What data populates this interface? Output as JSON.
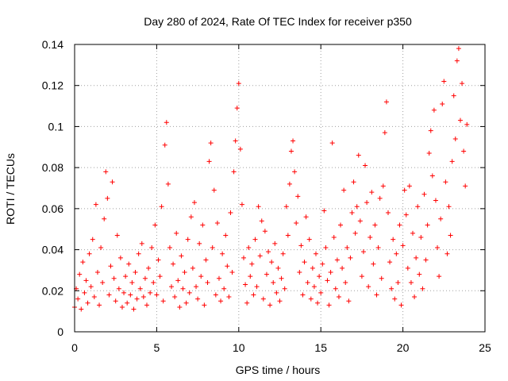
{
  "chart_data": {
    "type": "scatter",
    "title": "Day 280 of 2024, Rate Of TEC Index for receiver p350",
    "xlabel": "GPS time / hours",
    "ylabel": "ROTI / TECUs",
    "xlim": [
      0,
      25
    ],
    "ylim": [
      0,
      0.14
    ],
    "x_ticks": [
      0,
      5,
      10,
      15,
      20,
      25
    ],
    "y_ticks": [
      0,
      0.02,
      0.04,
      0.06,
      0.08,
      0.1,
      0.12,
      0.14
    ],
    "x_tick_labels": [
      "0",
      "5",
      "10",
      "15",
      "20",
      "25"
    ],
    "y_tick_labels": [
      "0",
      "0.02",
      "0.04",
      "0.06",
      "0.08",
      "0.1",
      "0.12",
      "0.14"
    ],
    "grid": true,
    "marker": "+",
    "color": "#ff0000",
    "series": [
      {
        "name": "ROTI",
        "points": [
          [
            0.0,
            0.012
          ],
          [
            0.1,
            0.021
          ],
          [
            0.2,
            0.016
          ],
          [
            0.3,
            0.028
          ],
          [
            0.4,
            0.011
          ],
          [
            0.5,
            0.034
          ],
          [
            0.6,
            0.019
          ],
          [
            0.7,
            0.025
          ],
          [
            0.8,
            0.014
          ],
          [
            0.9,
            0.038
          ],
          [
            1.0,
            0.022
          ],
          [
            1.1,
            0.045
          ],
          [
            1.2,
            0.017
          ],
          [
            1.3,
            0.062
          ],
          [
            1.4,
            0.029
          ],
          [
            1.5,
            0.013
          ],
          [
            1.6,
            0.041
          ],
          [
            1.7,
            0.024
          ],
          [
            1.8,
            0.055
          ],
          [
            1.9,
            0.078
          ],
          [
            2.0,
            0.065
          ],
          [
            2.1,
            0.018
          ],
          [
            2.2,
            0.032
          ],
          [
            2.3,
            0.073
          ],
          [
            2.4,
            0.026
          ],
          [
            2.5,
            0.015
          ],
          [
            2.6,
            0.047
          ],
          [
            2.7,
            0.021
          ],
          [
            2.8,
            0.036
          ],
          [
            2.9,
            0.012
          ],
          [
            3.0,
            0.019
          ],
          [
            3.1,
            0.027
          ],
          [
            3.2,
            0.014
          ],
          [
            3.3,
            0.033
          ],
          [
            3.4,
            0.018
          ],
          [
            3.5,
            0.024
          ],
          [
            3.6,
            0.011
          ],
          [
            3.7,
            0.029
          ],
          [
            3.8,
            0.016
          ],
          [
            3.9,
            0.038
          ],
          [
            4.0,
            0.021
          ],
          [
            4.1,
            0.043
          ],
          [
            4.2,
            0.017
          ],
          [
            4.3,
            0.026
          ],
          [
            4.4,
            0.013
          ],
          [
            4.5,
            0.031
          ],
          [
            4.6,
            0.019
          ],
          [
            4.7,
            0.041
          ],
          [
            4.8,
            0.024
          ],
          [
            4.9,
            0.052
          ],
          [
            5.0,
            0.018
          ],
          [
            5.1,
            0.035
          ],
          [
            5.2,
            0.027
          ],
          [
            5.3,
            0.061
          ],
          [
            5.4,
            0.015
          ],
          [
            5.5,
            0.091
          ],
          [
            5.6,
            0.102
          ],
          [
            5.7,
            0.072
          ],
          [
            5.8,
            0.041
          ],
          [
            5.9,
            0.022
          ],
          [
            6.0,
            0.033
          ],
          [
            6.1,
            0.017
          ],
          [
            6.2,
            0.048
          ],
          [
            6.3,
            0.025
          ],
          [
            6.4,
            0.012
          ],
          [
            6.5,
            0.037
          ],
          [
            6.6,
            0.021
          ],
          [
            6.7,
            0.029
          ],
          [
            6.8,
            0.014
          ],
          [
            6.9,
            0.045
          ],
          [
            7.0,
            0.019
          ],
          [
            7.1,
            0.056
          ],
          [
            7.2,
            0.031
          ],
          [
            7.3,
            0.063
          ],
          [
            7.4,
            0.022
          ],
          [
            7.5,
            0.016
          ],
          [
            7.6,
            0.043
          ],
          [
            7.7,
            0.027
          ],
          [
            7.8,
            0.052
          ],
          [
            7.9,
            0.013
          ],
          [
            8.0,
            0.035
          ],
          [
            8.1,
            0.024
          ],
          [
            8.2,
            0.083
          ],
          [
            8.3,
            0.092
          ],
          [
            8.4,
            0.041
          ],
          [
            8.5,
            0.069
          ],
          [
            8.6,
            0.018
          ],
          [
            8.7,
            0.053
          ],
          [
            8.8,
            0.026
          ],
          [
            8.9,
            0.015
          ],
          [
            9.0,
            0.038
          ],
          [
            9.1,
            0.021
          ],
          [
            9.2,
            0.047
          ],
          [
            9.3,
            0.032
          ],
          [
            9.4,
            0.017
          ],
          [
            9.5,
            0.058
          ],
          [
            9.6,
            0.029
          ],
          [
            9.7,
            0.078
          ],
          [
            9.8,
            0.093
          ],
          [
            9.9,
            0.109
          ],
          [
            10.0,
            0.121
          ],
          [
            10.1,
            0.089
          ],
          [
            10.2,
            0.062
          ],
          [
            10.3,
            0.036
          ],
          [
            10.4,
            0.023
          ],
          [
            10.5,
            0.014
          ],
          [
            10.6,
            0.041
          ],
          [
            10.7,
            0.027
          ],
          [
            10.8,
            0.033
          ],
          [
            10.9,
            0.018
          ],
          [
            11.0,
            0.045
          ],
          [
            11.1,
            0.022
          ],
          [
            11.2,
            0.061
          ],
          [
            11.3,
            0.037
          ],
          [
            11.4,
            0.054
          ],
          [
            11.5,
            0.016
          ],
          [
            11.6,
            0.049
          ],
          [
            11.7,
            0.028
          ],
          [
            11.8,
            0.039
          ],
          [
            11.9,
            0.013
          ],
          [
            12.0,
            0.034
          ],
          [
            12.1,
            0.024
          ],
          [
            12.2,
            0.043
          ],
          [
            12.3,
            0.019
          ],
          [
            12.4,
            0.031
          ],
          [
            12.5,
            0.015
          ],
          [
            12.6,
            0.026
          ],
          [
            12.7,
            0.038
          ],
          [
            12.8,
            0.021
          ],
          [
            12.9,
            0.061
          ],
          [
            13.0,
            0.047
          ],
          [
            13.1,
            0.072
          ],
          [
            13.2,
            0.088
          ],
          [
            13.3,
            0.093
          ],
          [
            13.4,
            0.078
          ],
          [
            13.5,
            0.053
          ],
          [
            13.6,
            0.066
          ],
          [
            13.7,
            0.029
          ],
          [
            13.8,
            0.042
          ],
          [
            13.9,
            0.018
          ],
          [
            14.0,
            0.034
          ],
          [
            14.1,
            0.056
          ],
          [
            14.2,
            0.024
          ],
          [
            14.3,
            0.045
          ],
          [
            14.4,
            0.016
          ],
          [
            14.5,
            0.031
          ],
          [
            14.6,
            0.022
          ],
          [
            14.7,
            0.038
          ],
          [
            14.8,
            0.014
          ],
          [
            14.9,
            0.027
          ],
          [
            15.0,
            0.019
          ],
          [
            15.1,
            0.033
          ],
          [
            15.2,
            0.059
          ],
          [
            15.3,
            0.041
          ],
          [
            15.4,
            0.025
          ],
          [
            15.5,
            0.013
          ],
          [
            15.6,
            0.029
          ],
          [
            15.7,
            0.092
          ],
          [
            15.8,
            0.046
          ],
          [
            15.9,
            0.021
          ],
          [
            16.0,
            0.035
          ],
          [
            16.1,
            0.017
          ],
          [
            16.2,
            0.052
          ],
          [
            16.3,
            0.031
          ],
          [
            16.4,
            0.069
          ],
          [
            16.5,
            0.024
          ],
          [
            16.6,
            0.041
          ],
          [
            16.7,
            0.015
          ],
          [
            16.8,
            0.036
          ],
          [
            16.9,
            0.058
          ],
          [
            17.0,
            0.073
          ],
          [
            17.1,
            0.048
          ],
          [
            17.2,
            0.061
          ],
          [
            17.3,
            0.086
          ],
          [
            17.4,
            0.054
          ],
          [
            17.5,
            0.027
          ],
          [
            17.6,
            0.039
          ],
          [
            17.7,
            0.081
          ],
          [
            17.8,
            0.063
          ],
          [
            17.9,
            0.022
          ],
          [
            18.0,
            0.046
          ],
          [
            18.1,
            0.068
          ],
          [
            18.2,
            0.033
          ],
          [
            18.3,
            0.052
          ],
          [
            18.4,
            0.018
          ],
          [
            18.5,
            0.041
          ],
          [
            18.6,
            0.065
          ],
          [
            18.7,
            0.026
          ],
          [
            18.8,
            0.071
          ],
          [
            18.9,
            0.097
          ],
          [
            19.0,
            0.112
          ],
          [
            19.1,
            0.058
          ],
          [
            19.2,
            0.034
          ],
          [
            19.3,
            0.021
          ],
          [
            19.4,
            0.045
          ],
          [
            19.5,
            0.016
          ],
          [
            19.6,
            0.038
          ],
          [
            19.7,
            0.024
          ],
          [
            19.8,
            0.052
          ],
          [
            19.9,
            0.013
          ],
          [
            20.0,
            0.042
          ],
          [
            20.1,
            0.069
          ],
          [
            20.2,
            0.057
          ],
          [
            20.3,
            0.031
          ],
          [
            20.4,
            0.071
          ],
          [
            20.5,
            0.024
          ],
          [
            20.6,
            0.048
          ],
          [
            20.7,
            0.017
          ],
          [
            20.8,
            0.036
          ],
          [
            20.9,
            0.061
          ],
          [
            21.0,
            0.028
          ],
          [
            21.1,
            0.046
          ],
          [
            21.2,
            0.021
          ],
          [
            21.3,
            0.067
          ],
          [
            21.4,
            0.035
          ],
          [
            21.5,
            0.052
          ],
          [
            21.6,
            0.087
          ],
          [
            21.7,
            0.098
          ],
          [
            21.8,
            0.076
          ],
          [
            21.9,
            0.108
          ],
          [
            22.0,
            0.064
          ],
          [
            22.1,
            0.041
          ],
          [
            22.2,
            0.027
          ],
          [
            22.3,
            0.055
          ],
          [
            22.4,
            0.111
          ],
          [
            22.5,
            0.122
          ],
          [
            22.6,
            0.073
          ],
          [
            22.7,
            0.038
          ],
          [
            22.8,
            0.061
          ],
          [
            22.9,
            0.047
          ],
          [
            23.0,
            0.083
          ],
          [
            23.1,
            0.115
          ],
          [
            23.2,
            0.094
          ],
          [
            23.3,
            0.132
          ],
          [
            23.4,
            0.138
          ],
          [
            23.5,
            0.103
          ],
          [
            23.6,
            0.121
          ],
          [
            23.7,
            0.088
          ],
          [
            23.8,
            0.071
          ],
          [
            23.9,
            0.101
          ]
        ]
      }
    ]
  }
}
